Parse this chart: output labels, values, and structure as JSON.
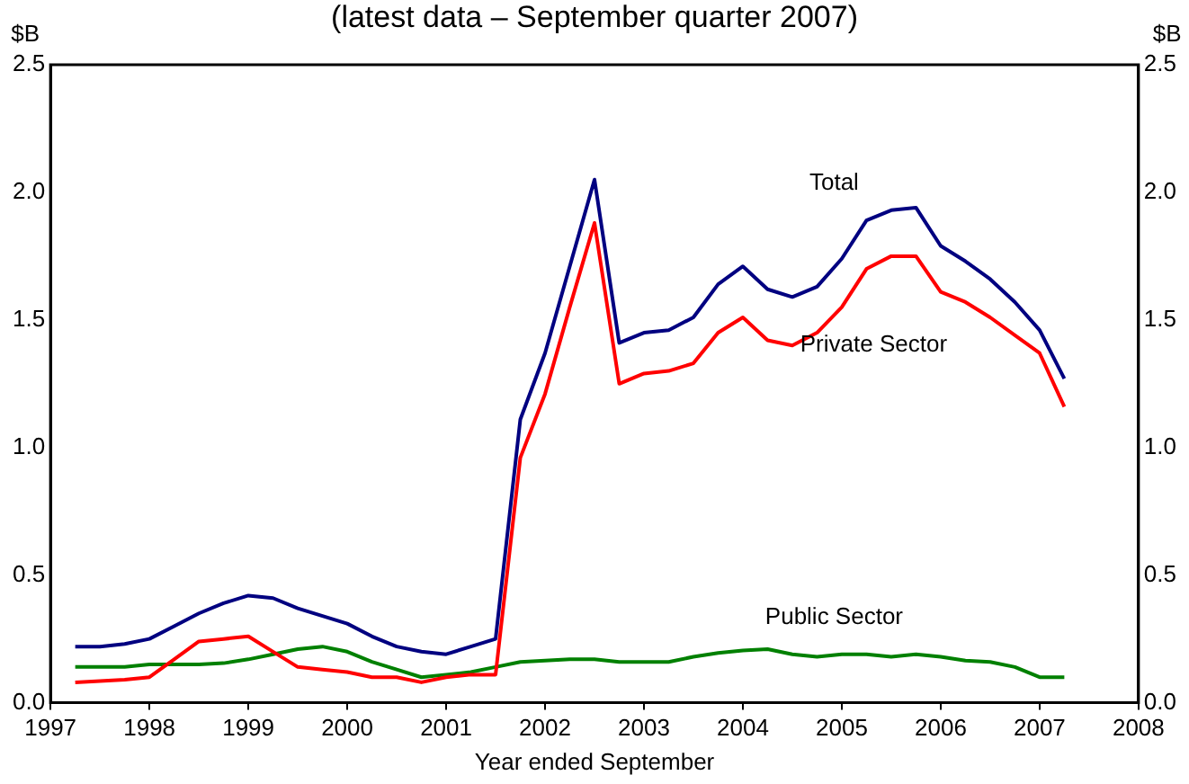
{
  "chart_data": {
    "type": "line",
    "title": "(latest data – September quarter 2007)",
    "xlabel": "Year ended September",
    "ylabel": "$B",
    "y2label": "$B",
    "x": [
      1997.25,
      1997.5,
      1997.75,
      1998,
      1998.25,
      1998.5,
      1998.75,
      1999,
      1999.25,
      1999.5,
      1999.75,
      2000,
      2000.25,
      2000.5,
      2000.75,
      2001,
      2001.25,
      2001.5,
      2001.75,
      2002,
      2002.25,
      2002.5,
      2002.75,
      2003,
      2003.25,
      2003.5,
      2003.75,
      2004,
      2004.25,
      2004.5,
      2004.75,
      2005,
      2005.25,
      2005.5,
      2005.75,
      2006,
      2006.25,
      2006.5,
      2006.75,
      2007,
      2007.25
    ],
    "series": [
      {
        "name": "Total",
        "color": "#000080",
        "values": [
          0.22,
          0.22,
          0.23,
          0.25,
          0.3,
          0.35,
          0.39,
          0.42,
          0.41,
          0.37,
          0.34,
          0.31,
          0.26,
          0.22,
          0.2,
          0.19,
          0.22,
          0.25,
          1.11,
          1.37,
          1.71,
          2.05,
          1.41,
          1.45,
          1.46,
          1.51,
          1.64,
          1.71,
          1.62,
          1.59,
          1.63,
          1.74,
          1.89,
          1.93,
          1.94,
          1.79,
          1.73,
          1.66,
          1.57,
          1.46,
          1.27
        ]
      },
      {
        "name": "Private Sector",
        "color": "#ff0000",
        "values": [
          0.08,
          0.085,
          0.09,
          0.1,
          0.17,
          0.24,
          0.25,
          0.26,
          0.2,
          0.14,
          0.13,
          0.12,
          0.1,
          0.1,
          0.08,
          0.1,
          0.11,
          0.11,
          0.96,
          1.21,
          1.55,
          1.88,
          1.25,
          1.29,
          1.3,
          1.33,
          1.45,
          1.51,
          1.42,
          1.4,
          1.45,
          1.55,
          1.7,
          1.75,
          1.75,
          1.61,
          1.57,
          1.51,
          1.44,
          1.37,
          1.16
        ]
      },
      {
        "name": "Public Sector",
        "color": "#008000",
        "values": [
          0.14,
          0.14,
          0.14,
          0.15,
          0.15,
          0.15,
          0.155,
          0.17,
          0.19,
          0.21,
          0.22,
          0.2,
          0.16,
          0.13,
          0.1,
          0.11,
          0.12,
          0.14,
          0.16,
          0.165,
          0.17,
          0.17,
          0.16,
          0.16,
          0.16,
          0.18,
          0.195,
          0.205,
          0.21,
          0.19,
          0.18,
          0.19,
          0.19,
          0.18,
          0.19,
          0.18,
          0.165,
          0.16,
          0.14,
          0.1,
          0.1
        ]
      }
    ],
    "xlim": [
      1997,
      2008
    ],
    "xticks": [
      1997,
      1998,
      1999,
      2000,
      2001,
      2002,
      2003,
      2004,
      2005,
      2006,
      2007,
      2008
    ],
    "ylim": [
      0,
      2.5
    ],
    "yticks": [
      {
        "value": 0,
        "label": "0.0"
      },
      {
        "value": 0.5,
        "label": "0.5"
      },
      {
        "value": 1,
        "label": "1.0"
      },
      {
        "value": 1.5,
        "label": "1.5"
      },
      {
        "value": 2,
        "label": "2.0"
      },
      {
        "value": 2.5,
        "label": "2.5"
      }
    ],
    "y2lim": [
      0,
      2.5
    ],
    "y2ticks": [
      {
        "value": 0,
        "label": "0.0"
      },
      {
        "value": 0.5,
        "label": "0.5"
      },
      {
        "value": 1,
        "label": "1.0"
      },
      {
        "value": 1.5,
        "label": "1.5"
      },
      {
        "value": 2,
        "label": "2.0"
      },
      {
        "value": 2.5,
        "label": "2.5"
      }
    ],
    "grid": false,
    "legend": false,
    "marker": "none",
    "line_style": "solid"
  }
}
